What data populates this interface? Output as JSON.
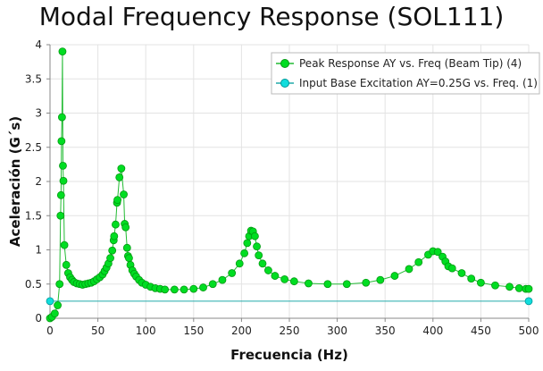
{
  "chart_data": {
    "type": "line",
    "title": "Modal Frequency Response (SOL111)",
    "xlabel": "Frecuencia (Hz)",
    "ylabel": "Aceleración (G´s)",
    "xlim": [
      0,
      500
    ],
    "ylim": [
      0,
      4
    ],
    "xticks": [
      0,
      50,
      100,
      150,
      200,
      250,
      300,
      350,
      400,
      450,
      500
    ],
    "yticks": [
      0,
      0.5,
      1,
      1.5,
      2,
      2.5,
      3,
      3.5,
      4
    ],
    "ytick_labels": [
      "0",
      "0.5",
      "1",
      "1.5",
      "2",
      "2.5",
      "3",
      "3.5",
      "4"
    ],
    "grid": true,
    "legend_position": "top-right",
    "series": [
      {
        "name": "Peak Response AY vs. Freq (Beam Tip) (4)",
        "color": "#00cc22",
        "marker": "circle",
        "x": [
          0,
          2,
          5,
          8,
          10,
          11,
          11.5,
          12,
          12.5,
          13,
          13.5,
          14,
          15,
          17,
          19,
          21,
          23,
          25,
          28,
          31,
          34,
          37,
          40,
          43,
          46,
          49,
          52,
          55,
          57,
          59,
          61,
          63,
          65,
          66.5,
          67,
          68.5,
          70,
          70.5,
          72.5,
          74.5,
          77,
          78,
          79,
          80.5,
          81.5,
          82.5,
          84,
          86,
          88,
          90,
          93,
          96,
          100,
          105,
          110,
          115,
          120,
          130,
          140,
          150,
          160,
          170,
          180,
          190,
          198,
          203,
          206,
          208,
          210,
          212,
          214,
          216,
          218,
          222,
          228,
          235,
          245,
          255,
          270,
          290,
          310,
          330,
          345,
          360,
          375,
          385,
          395,
          400,
          405,
          410,
          413,
          416,
          420,
          430,
          440,
          450,
          465,
          480,
          490,
          497,
          500
        ],
        "y": [
          0,
          0.02,
          0.07,
          0.19,
          0.5,
          1.5,
          1.8,
          2.59,
          2.94,
          3.9,
          2.23,
          2.01,
          1.07,
          0.78,
          0.66,
          0.6,
          0.56,
          0.53,
          0.51,
          0.5,
          0.49,
          0.5,
          0.51,
          0.52,
          0.54,
          0.57,
          0.6,
          0.64,
          0.69,
          0.74,
          0.8,
          0.88,
          0.99,
          1.14,
          1.2,
          1.37,
          1.69,
          1.73,
          2.06,
          2.19,
          1.81,
          1.38,
          1.33,
          1.03,
          0.91,
          0.88,
          0.78,
          0.7,
          0.65,
          0.61,
          0.56,
          0.52,
          0.49,
          0.46,
          0.44,
          0.43,
          0.42,
          0.42,
          0.42,
          0.43,
          0.45,
          0.5,
          0.56,
          0.66,
          0.8,
          0.95,
          1.1,
          1.2,
          1.28,
          1.27,
          1.2,
          1.05,
          0.92,
          0.8,
          0.7,
          0.62,
          0.57,
          0.54,
          0.51,
          0.5,
          0.5,
          0.52,
          0.56,
          0.62,
          0.72,
          0.82,
          0.93,
          0.98,
          0.97,
          0.9,
          0.83,
          0.76,
          0.73,
          0.66,
          0.58,
          0.52,
          0.48,
          0.46,
          0.44,
          0.43,
          0.43
        ]
      },
      {
        "name": "Input Base Excitation AY=0.25G vs. Freq. (1)",
        "color": "#00cccc",
        "marker": "circle",
        "x": [
          0,
          500
        ],
        "y": [
          0.25,
          0.25
        ]
      }
    ]
  }
}
